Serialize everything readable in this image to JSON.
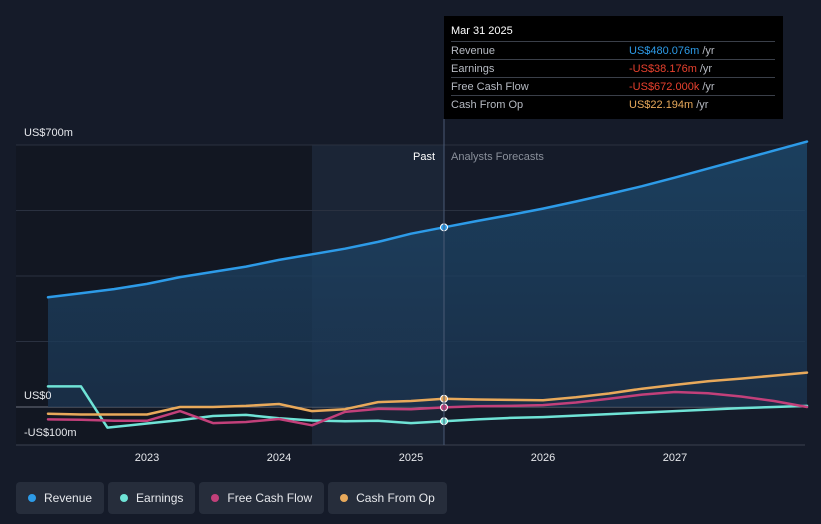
{
  "tooltip": {
    "date": "Mar 31 2025",
    "rows": [
      {
        "label": "Revenue",
        "value": "US$480.076m",
        "unit": "/yr",
        "color": "#2d9be8"
      },
      {
        "label": "Earnings",
        "value": "-US$38.176m",
        "unit": "/yr",
        "color": "#e8412e"
      },
      {
        "label": "Free Cash Flow",
        "value": "-US$672.000k",
        "unit": "/yr",
        "color": "#e8412e"
      },
      {
        "label": "Cash From Op",
        "value": "US$22.194m",
        "unit": "/yr",
        "color": "#e8a95b"
      }
    ]
  },
  "labels": {
    "past": "Past",
    "forecast": "Analysts Forecasts"
  },
  "legend": [
    {
      "label": "Revenue",
      "color": "#2d9be8"
    },
    {
      "label": "Earnings",
      "color": "#6fe3d6"
    },
    {
      "label": "Free Cash Flow",
      "color": "#c2407a"
    },
    {
      "label": "Cash From Op",
      "color": "#e8a95b"
    }
  ],
  "chart_data": {
    "type": "line",
    "ylim": [
      -100,
      700
    ],
    "yticks": [
      {
        "value": 700,
        "label": "US$700m"
      },
      {
        "value": 0,
        "label": "US$0"
      },
      {
        "value": -100,
        "label": "-US$100m"
      }
    ],
    "xlim": [
      2022.3,
      2028.0
    ],
    "xticks": [
      {
        "value": 2023.0,
        "label": "2023"
      },
      {
        "value": 2024.0,
        "label": "2024"
      },
      {
        "value": 2025.0,
        "label": "2025"
      },
      {
        "value": 2026.0,
        "label": "2026"
      },
      {
        "value": 2027.0,
        "label": "2027"
      }
    ],
    "past_region_start": 2024.25,
    "today": 2025.25,
    "grid": true,
    "series": [
      {
        "name": "Revenue",
        "color": "#2d9be8",
        "fill": true,
        "points": [
          [
            2022.25,
            293
          ],
          [
            2022.5,
            304
          ],
          [
            2022.75,
            315
          ],
          [
            2023.0,
            329
          ],
          [
            2023.25,
            347
          ],
          [
            2023.5,
            361
          ],
          [
            2023.75,
            375
          ],
          [
            2024.0,
            393
          ],
          [
            2024.25,
            408
          ],
          [
            2024.5,
            423
          ],
          [
            2024.75,
            441
          ],
          [
            2025.0,
            463
          ],
          [
            2025.25,
            480
          ],
          [
            2025.5,
            497
          ],
          [
            2025.75,
            513
          ],
          [
            2026.0,
            530
          ],
          [
            2026.25,
            549
          ],
          [
            2026.5,
            569
          ],
          [
            2026.75,
            590
          ],
          [
            2027.0,
            613
          ],
          [
            2027.25,
            637
          ],
          [
            2027.5,
            661
          ],
          [
            2027.75,
            685
          ],
          [
            2028.0,
            709
          ]
        ]
      },
      {
        "name": "Earnings",
        "color": "#6fe3d6",
        "fill": false,
        "points": [
          [
            2022.25,
            55
          ],
          [
            2022.5,
            55
          ],
          [
            2022.7,
            -55
          ],
          [
            2023.0,
            -44
          ],
          [
            2023.25,
            -35
          ],
          [
            2023.5,
            -24
          ],
          [
            2023.75,
            -21
          ],
          [
            2024.0,
            -30
          ],
          [
            2024.25,
            -36
          ],
          [
            2024.5,
            -38
          ],
          [
            2024.75,
            -37
          ],
          [
            2025.0,
            -43
          ],
          [
            2025.25,
            -38
          ],
          [
            2025.5,
            -33
          ],
          [
            2025.75,
            -29
          ],
          [
            2026.0,
            -27
          ],
          [
            2026.25,
            -23
          ],
          [
            2026.5,
            -19
          ],
          [
            2026.75,
            -15
          ],
          [
            2027.0,
            -11
          ],
          [
            2027.25,
            -7
          ],
          [
            2027.5,
            -3
          ],
          [
            2027.75,
            0
          ],
          [
            2028.0,
            3
          ]
        ]
      },
      {
        "name": "Free Cash Flow",
        "color": "#c2407a",
        "fill": false,
        "points": [
          [
            2022.25,
            -33
          ],
          [
            2022.5,
            -34
          ],
          [
            2022.75,
            -37
          ],
          [
            2023.0,
            -37
          ],
          [
            2023.25,
            -11
          ],
          [
            2023.5,
            -43
          ],
          [
            2023.75,
            -40
          ],
          [
            2024.0,
            -32
          ],
          [
            2024.25,
            -49
          ],
          [
            2024.5,
            -13
          ],
          [
            2024.75,
            -5
          ],
          [
            2025.0,
            -6
          ],
          [
            2025.25,
            -1
          ],
          [
            2025.5,
            2
          ],
          [
            2025.75,
            3
          ],
          [
            2026.0,
            5
          ],
          [
            2026.25,
            12
          ],
          [
            2026.5,
            22
          ],
          [
            2026.75,
            33
          ],
          [
            2027.0,
            40
          ],
          [
            2027.25,
            37
          ],
          [
            2027.5,
            28
          ],
          [
            2027.75,
            16
          ],
          [
            2028.0,
            0
          ]
        ]
      },
      {
        "name": "Cash From Op",
        "color": "#e8a95b",
        "fill": false,
        "points": [
          [
            2022.25,
            -18
          ],
          [
            2022.5,
            -20
          ],
          [
            2022.75,
            -20
          ],
          [
            2023.0,
            -20
          ],
          [
            2023.25,
            0
          ],
          [
            2023.5,
            0
          ],
          [
            2023.75,
            3
          ],
          [
            2024.0,
            8
          ],
          [
            2024.25,
            -11
          ],
          [
            2024.5,
            -6
          ],
          [
            2024.75,
            13
          ],
          [
            2025.0,
            16
          ],
          [
            2025.25,
            22
          ],
          [
            2025.5,
            20
          ],
          [
            2025.75,
            19
          ],
          [
            2026.0,
            18
          ],
          [
            2026.25,
            26
          ],
          [
            2026.5,
            36
          ],
          [
            2026.75,
            49
          ],
          [
            2027.0,
            59
          ],
          [
            2027.25,
            69
          ],
          [
            2027.5,
            76
          ],
          [
            2027.75,
            84
          ],
          [
            2028.0,
            92
          ]
        ]
      }
    ]
  }
}
